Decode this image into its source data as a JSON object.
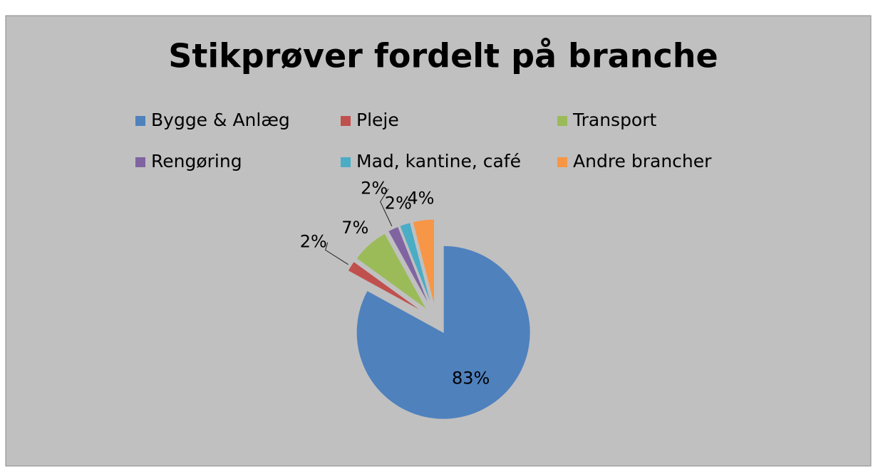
{
  "chart_data": {
    "type": "pie",
    "title": "Stikprøver fordelt på branche",
    "categories": [
      "Bygge & Anlæg",
      "Pleje",
      "Transport",
      "Rengøring",
      "Mad, kantine, café",
      "Andre brancher"
    ],
    "values": [
      83,
      2,
      7,
      2,
      2,
      4
    ],
    "value_labels": [
      "83%",
      "2%",
      "7%",
      "2%",
      "2%",
      "4%"
    ],
    "colors": [
      "#4f81bd",
      "#c0504d",
      "#9bbb59",
      "#8064a2",
      "#4bacc6",
      "#f79646"
    ],
    "legend": "top"
  }
}
